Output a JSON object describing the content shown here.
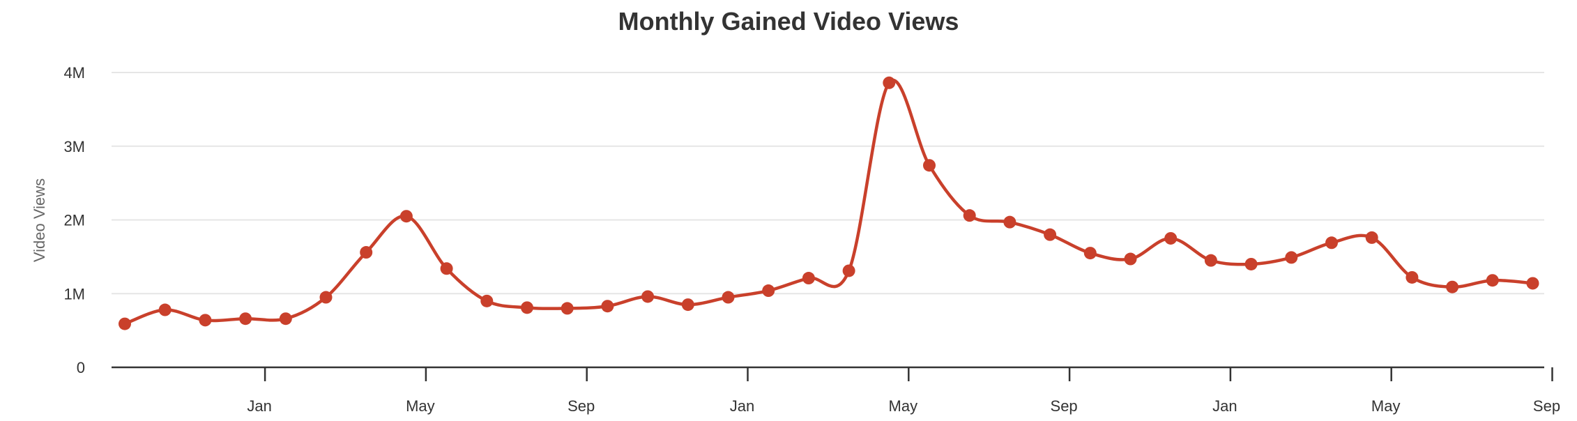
{
  "chart_data": {
    "type": "line",
    "title": "Monthly Gained Video Views",
    "ylabel": "Video Views",
    "ylim": [
      0,
      4000000
    ],
    "yticks": [
      {
        "value": 0,
        "label": "0"
      },
      {
        "value": 1000000,
        "label": "1M"
      },
      {
        "value": 2000000,
        "label": "2M"
      },
      {
        "value": 3000000,
        "label": "3M"
      },
      {
        "value": 4000000,
        "label": "4M"
      }
    ],
    "xticks": [
      {
        "index": 3,
        "label": "Jan"
      },
      {
        "index": 7,
        "label": "May"
      },
      {
        "index": 11,
        "label": "Sep"
      },
      {
        "index": 15,
        "label": "Jan"
      },
      {
        "index": 19,
        "label": "May"
      },
      {
        "index": 23,
        "label": "Sep"
      },
      {
        "index": 27,
        "label": "Jan"
      },
      {
        "index": 31,
        "label": "May"
      },
      {
        "index": 35,
        "label": "Sep"
      }
    ],
    "grid": true,
    "color": "#c9402b",
    "series": [
      {
        "values": [
          590000,
          780000,
          640000,
          660000,
          660000,
          950000,
          1560000,
          2050000,
          1340000,
          900000,
          810000,
          800000,
          830000,
          960000,
          850000,
          950000,
          1040000,
          1210000,
          1310000,
          3860000,
          2740000,
          2060000,
          1970000,
          1800000,
          1550000,
          1470000,
          1750000,
          1450000,
          1400000,
          1490000,
          1690000,
          1760000,
          1220000,
          1090000,
          1180000,
          1140000
        ]
      }
    ]
  }
}
